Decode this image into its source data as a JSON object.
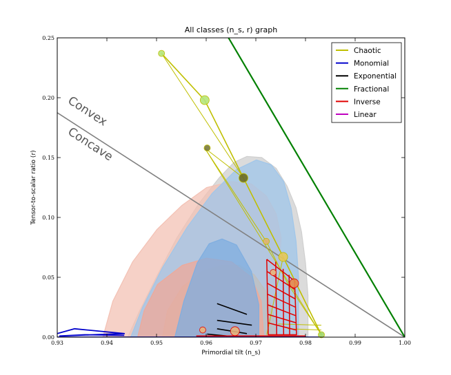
{
  "chart_data": {
    "type": "line",
    "title": "All classes (n_s, r) graph",
    "xlabel": "Primordial tilt (n_s)",
    "ylabel": "Tensor-to-scalar ratio (r)",
    "xlim": [
      0.93,
      1.0
    ],
    "ylim": [
      0.0,
      0.25
    ],
    "xticks": [
      "0.93",
      "0.94",
      "0.95",
      "0.96",
      "0.97",
      "0.98",
      "0.99",
      "1.00"
    ],
    "yticks": [
      "0.00",
      "0.05",
      "0.10",
      "0.15",
      "0.20",
      "0.25"
    ],
    "grid": false,
    "legend_position": "top-right",
    "region_labels": [
      "Convex",
      "Concave"
    ],
    "colors": {
      "chaotic": "#bfbf00",
      "monomial": "#0000cc",
      "exponential": "#000000",
      "fractional": "#008000",
      "inverse": "#e00000",
      "linear": "#bf00bf",
      "divider": "#808080",
      "planck_gray": "#cfcfcf",
      "planck_blue": "#9fc6ea",
      "planck_red": "#f3c1b4"
    },
    "divider_line": [
      [
        0.93,
        0.1875
      ],
      [
        1.0,
        0.0
      ]
    ],
    "confidence_regions": [
      {
        "name": "gray-outer",
        "color": "#cfcfcf",
        "points": [
          [
            0.9442,
            0.0
          ],
          [
            0.9466,
            0.022
          ],
          [
            0.9502,
            0.052
          ],
          [
            0.9541,
            0.083
          ],
          [
            0.9586,
            0.112
          ],
          [
            0.9626,
            0.133
          ],
          [
            0.9656,
            0.146
          ],
          [
            0.9682,
            0.151
          ],
          [
            0.9712,
            0.15
          ],
          [
            0.9741,
            0.141
          ],
          [
            0.9763,
            0.126
          ],
          [
            0.9781,
            0.108
          ],
          [
            0.9792,
            0.088
          ],
          [
            0.98,
            0.062
          ],
          [
            0.9805,
            0.035
          ],
          [
            0.9805,
            0.0
          ]
        ]
      },
      {
        "name": "red-outer",
        "color": "#f3c1b4",
        "points": [
          [
            0.9392,
            0.0
          ],
          [
            0.9412,
            0.03
          ],
          [
            0.9452,
            0.063
          ],
          [
            0.9501,
            0.09
          ],
          [
            0.9551,
            0.11
          ],
          [
            0.9601,
            0.125
          ],
          [
            0.9651,
            0.13
          ],
          [
            0.9691,
            0.128
          ],
          [
            0.9721,
            0.118
          ],
          [
            0.9741,
            0.103
          ],
          [
            0.9751,
            0.083
          ],
          [
            0.9746,
            0.053
          ],
          [
            0.9738,
            0.025
          ],
          [
            0.9728,
            0.0
          ]
        ]
      },
      {
        "name": "blue-outer",
        "color": "#9fc6ea",
        "points": [
          [
            0.9448,
            0.0
          ],
          [
            0.9472,
            0.025
          ],
          [
            0.9512,
            0.058
          ],
          [
            0.9562,
            0.092
          ],
          [
            0.9612,
            0.12
          ],
          [
            0.9661,
            0.14
          ],
          [
            0.9701,
            0.148
          ],
          [
            0.9731,
            0.144
          ],
          [
            0.9756,
            0.13
          ],
          [
            0.9771,
            0.108
          ],
          [
            0.9781,
            0.08
          ],
          [
            0.9786,
            0.05
          ],
          [
            0.9786,
            0.02
          ],
          [
            0.9786,
            0.0
          ]
        ]
      },
      {
        "name": "gray-inner",
        "color": "#bfbfbf",
        "points": [
          [
            0.9512,
            0.0
          ],
          [
            0.9522,
            0.022
          ],
          [
            0.9552,
            0.042
          ],
          [
            0.9592,
            0.055
          ],
          [
            0.9632,
            0.06
          ],
          [
            0.9667,
            0.06
          ],
          [
            0.9697,
            0.052
          ],
          [
            0.9721,
            0.038
          ],
          [
            0.9735,
            0.02
          ],
          [
            0.974,
            0.0
          ]
        ]
      },
      {
        "name": "red-inner",
        "color": "#f0a898",
        "points": [
          [
            0.9462,
            0.0
          ],
          [
            0.9475,
            0.022
          ],
          [
            0.9502,
            0.044
          ],
          [
            0.9552,
            0.06
          ],
          [
            0.9601,
            0.066
          ],
          [
            0.9651,
            0.063
          ],
          [
            0.9691,
            0.05
          ],
          [
            0.9711,
            0.03
          ],
          [
            0.9716,
            0.0
          ]
        ]
      },
      {
        "name": "blue-inner",
        "color": "#7faee0",
        "points": [
          [
            0.9537,
            0.0
          ],
          [
            0.9555,
            0.03
          ],
          [
            0.9582,
            0.062
          ],
          [
            0.9606,
            0.078
          ],
          [
            0.9632,
            0.082
          ],
          [
            0.9661,
            0.077
          ],
          [
            0.9691,
            0.055
          ],
          [
            0.9706,
            0.027
          ],
          [
            0.9706,
            0.0
          ]
        ]
      }
    ],
    "series": [
      {
        "name": "Chaotic",
        "color": "#bfbf00",
        "lines": [
          [
            [
              0.951,
              0.237
            ],
            [
              0.9597,
              0.198
            ],
            [
              0.9675,
              0.133
            ],
            [
              0.9755,
              0.067
            ],
            [
              0.9832,
              0.002
            ]
          ],
          [
            [
              0.951,
              0.237
            ],
            [
              0.9675,
              0.133
            ]
          ],
          [
            [
              0.9597,
              0.158
            ],
            [
              0.9675,
              0.133
            ]
          ],
          [
            [
              0.9597,
              0.158
            ],
            [
              0.9721,
              0.08
            ],
            [
              0.9765,
              0.044
            ],
            [
              0.9832,
              0.002
            ]
          ],
          [
            [
              0.9597,
              0.158
            ],
            [
              0.9832,
              0.002
            ]
          ],
          [
            [
              0.9755,
              0.067
            ],
            [
              0.9722,
              0.002
            ]
          ],
          [
            [
              0.9755,
              0.067
            ],
            [
              0.9832,
              0.002
            ]
          ],
          [
            [
              0.9764,
              0.007
            ],
            [
              0.9832,
              0.006
            ]
          ],
          [
            [
              0.9745,
              0.011
            ],
            [
              0.9832,
              0.01
            ]
          ]
        ],
        "points": [
          {
            "x": 0.951,
            "y": 0.237,
            "color": "#b5e67a"
          },
          {
            "x": 0.9597,
            "y": 0.198,
            "color": "#b5e67a"
          },
          {
            "x": 0.9602,
            "y": 0.158,
            "color": "#7a7a3c"
          },
          {
            "x": 0.9675,
            "y": 0.133,
            "color": "#6b6b24"
          },
          {
            "x": 0.9721,
            "y": 0.08,
            "color": "#e0b36e"
          },
          {
            "x": 0.9755,
            "y": 0.067,
            "color": "#e6c65a"
          },
          {
            "x": 0.9832,
            "y": 0.002,
            "color": "#9fd66a"
          }
        ]
      },
      {
        "name": "Monomial",
        "color": "#0000cc",
        "lines": [
          [
            [
              0.93,
              0.003
            ],
            [
              0.9335,
              0.007
            ],
            [
              0.9435,
              0.003
            ],
            [
              0.9305,
              0.001
            ],
            [
              0.9355,
              0.002
            ],
            [
              0.9435,
              0.0015
            ]
          ],
          [
            [
              0.93,
              0.0
            ],
            [
              0.9832,
              0.0
            ]
          ]
        ],
        "points": []
      },
      {
        "name": "Exponential",
        "color": "#000000",
        "lines": [
          [
            [
              0.9622,
              0.028
            ],
            [
              0.9682,
              0.019
            ]
          ],
          [
            [
              0.9622,
              0.014
            ],
            [
              0.9692,
              0.01
            ]
          ],
          [
            [
              0.9622,
              0.007
            ],
            [
              0.9682,
              0.003
            ]
          ],
          [
            [
              0.9602,
              0.0025
            ],
            [
              0.9642,
              0.001
            ]
          ]
        ],
        "points": []
      },
      {
        "name": "Fractional",
        "color": "#008000",
        "lines": [
          [
            [
              0.9645,
              0.25
            ],
            [
              1.0,
              0.0
            ]
          ]
        ],
        "points": []
      },
      {
        "name": "Inverse",
        "color": "#e00000",
        "lines": [
          [
            [
              0.9722,
              0.065
            ],
            [
              0.9778,
              0.047
            ],
            [
              0.9782,
              0.002
            ],
            [
              0.9725,
              0.002
            ],
            [
              0.9722,
              0.065
            ]
          ],
          [
            [
              0.9722,
              0.055
            ],
            [
              0.9778,
              0.04
            ]
          ],
          [
            [
              0.9723,
              0.045
            ],
            [
              0.9779,
              0.032
            ]
          ],
          [
            [
              0.9723,
              0.036
            ],
            [
              0.978,
              0.025
            ]
          ],
          [
            [
              0.9724,
              0.027
            ],
            [
              0.978,
              0.018
            ]
          ],
          [
            [
              0.9724,
              0.019
            ],
            [
              0.9781,
              0.012
            ]
          ],
          [
            [
              0.9724,
              0.012
            ],
            [
              0.9781,
              0.006
            ]
          ],
          [
            [
              0.974,
              0.063
            ],
            [
              0.9742,
              0.002
            ]
          ],
          [
            [
              0.9755,
              0.057
            ],
            [
              0.9756,
              0.002
            ]
          ],
          [
            [
              0.9767,
              0.052
            ],
            [
              0.9768,
              0.002
            ]
          ],
          [
            [
              0.958,
              0.001
            ],
            [
              0.98,
              0.001
            ]
          ]
        ],
        "points": [
          {
            "x": 0.9735,
            "y": 0.054,
            "color": "#e8b37a"
          },
          {
            "x": 0.9777,
            "y": 0.045,
            "color": "#e88a4a"
          },
          {
            "x": 0.9593,
            "y": 0.006,
            "color": "#e8b37a"
          },
          {
            "x": 0.9658,
            "y": 0.005,
            "color": "#e8b37a"
          }
        ]
      },
      {
        "name": "Linear",
        "color": "#bf00bf",
        "lines": [],
        "points": []
      }
    ]
  }
}
